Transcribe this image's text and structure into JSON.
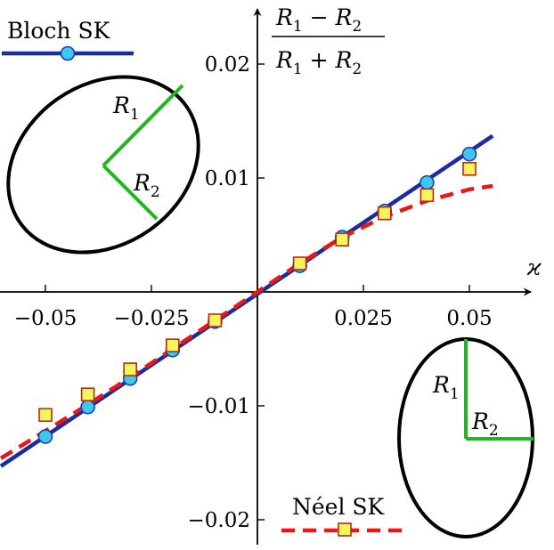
{
  "chart_data": {
    "type": "scatter",
    "title": "",
    "xlabel": "ϰ",
    "ylabel": "(R₁ − R₂)/(R₁ + R₂)",
    "xlim": [
      -0.0605,
      0.061
    ],
    "ylim": [
      -0.0225,
      0.025
    ],
    "x_ticks": [
      -0.05,
      -0.025,
      0.025,
      0.05
    ],
    "x_tick_labels": [
      "−0.05",
      "−0.025",
      "0.025",
      "0.05"
    ],
    "y_ticks": [
      0.02,
      0.01,
      -0.01,
      -0.02
    ],
    "y_tick_labels": [
      "0.02",
      "0.01",
      "−0.01",
      "−0.02"
    ],
    "grid": false,
    "ylabel_parts": {
      "numerator": [
        "R",
        "1",
        " − ",
        "R",
        "2"
      ],
      "denominator": [
        "R",
        "1",
        " + ",
        "R",
        "2"
      ]
    },
    "series": [
      {
        "name": "Bloch SK",
        "kind": "points",
        "marker": "circle",
        "color": "#3ec8f0",
        "edge_color": "#1b3fa8",
        "x": [
          -0.05,
          -0.04,
          -0.03,
          -0.02,
          -0.01,
          0.01,
          0.02,
          0.03,
          0.04,
          0.05
        ],
        "y": [
          -0.0127,
          -0.0101,
          -0.0076,
          -0.0051,
          -0.0026,
          0.0023,
          0.0048,
          0.0071,
          0.0096,
          0.0121
        ]
      },
      {
        "name": "Bloch SK",
        "kind": "line",
        "style": "solid",
        "color": "#1a2c9e",
        "x": [
          -0.0605,
          0.0555
        ],
        "y": [
          -0.0153,
          0.0137
        ]
      },
      {
        "name": "Néel SK",
        "kind": "points",
        "marker": "square",
        "color": "#f6f55a",
        "edge_color": "#b42a1a",
        "x": [
          -0.05,
          -0.04,
          -0.03,
          -0.02,
          -0.01,
          0.01,
          0.02,
          0.03,
          0.04,
          0.05
        ],
        "y": [
          -0.0108,
          -0.009,
          -0.0068,
          -0.0047,
          -0.0025,
          0.0025,
          0.0046,
          0.0069,
          0.0085,
          0.0108
        ]
      },
      {
        "name": "Néel SK",
        "kind": "line",
        "style": "dashed",
        "color": "#e81818",
        "x": [
          -0.0605,
          -0.05,
          -0.04,
          -0.03,
          -0.02,
          -0.01,
          0,
          0.01,
          0.02,
          0.03,
          0.04,
          0.05,
          0.0555
        ],
        "y": [
          -0.0146,
          -0.0122,
          -0.0099,
          -0.0075,
          -0.005,
          -0.0025,
          0,
          0.0025,
          0.0048,
          0.0066,
          0.008,
          0.009,
          0.0093
        ]
      }
    ],
    "legend": [
      {
        "label": "Bloch SK",
        "position": "top-left",
        "marker": "circle",
        "line": "solid"
      },
      {
        "label": "Néel SK",
        "position": "bottom",
        "marker": "square",
        "line": "dashed"
      }
    ],
    "insets": [
      {
        "name": "bloch-ellipse",
        "description_label_1": "R",
        "sub_1": "1",
        "description_label_2": "R",
        "sub_2": "2",
        "ellipse_color": "#000000",
        "radius_color": "#22b522"
      },
      {
        "name": "neel-ellipse",
        "description_label_1": "R",
        "sub_1": "1",
        "description_label_2": "R",
        "sub_2": "2",
        "ellipse_color": "#000000",
        "radius_color": "#22b522"
      }
    ]
  }
}
